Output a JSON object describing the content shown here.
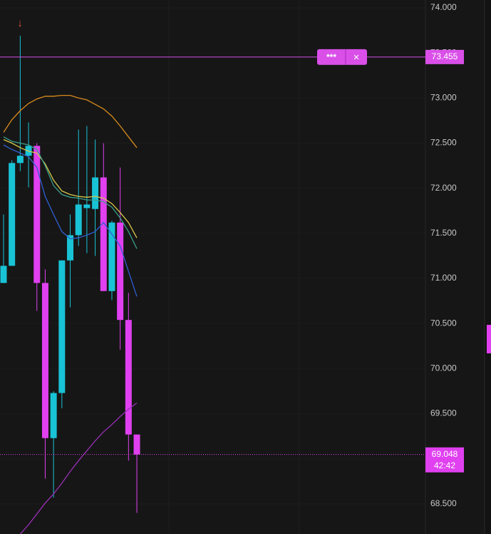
{
  "chart_data": {
    "type": "candlestick",
    "ylim": [
      68.167,
      74.087
    ],
    "yticks": [
      {
        "value": 74,
        "label": "74.000"
      },
      {
        "value": 73.5,
        "label": "73.500"
      },
      {
        "value": 73,
        "label": "73.000"
      },
      {
        "value": 72.5,
        "label": "72.500"
      },
      {
        "value": 72,
        "label": "72.000"
      },
      {
        "value": 71.5,
        "label": "71.500"
      },
      {
        "value": 71,
        "label": "71.000"
      },
      {
        "value": 70.5,
        "label": "70.500"
      },
      {
        "value": 70,
        "label": "70.000"
      },
      {
        "value": 69.5,
        "label": "69.500"
      },
      {
        "value": 69,
        "label": "69.000"
      },
      {
        "value": 68.5,
        "label": "68.500"
      }
    ],
    "grid": true,
    "up_color": "#19c3d6",
    "down_color": "#e040f0",
    "open": [
      70.95,
      71.14,
      72.28,
      72.36,
      72.47,
      70.95,
      69.23,
      69.73,
      71.2,
      71.48,
      71.78,
      71.77,
      72.12,
      70.86,
      71.62,
      70.54,
      69.27
    ],
    "high": [
      71.71,
      72.31,
      73.69,
      72.73,
      72.5,
      71.1,
      69.75,
      71.2,
      71.71,
      72.65,
      72.69,
      72.54,
      72.5,
      71.64,
      72.23,
      70.84,
      69.27
    ],
    "low": [
      70.95,
      71.14,
      72.19,
      72.01,
      70.64,
      68.78,
      68.57,
      69.56,
      70.68,
      71.36,
      71.28,
      71.25,
      70.86,
      70.76,
      70.21,
      68.98,
      68.4
    ],
    "close": [
      71.14,
      72.28,
      72.36,
      72.47,
      70.95,
      69.23,
      69.73,
      71.2,
      71.48,
      71.82,
      71.82,
      72.12,
      70.86,
      71.62,
      70.54,
      69.27,
      69.048
    ],
    "series": [
      {
        "color": "#d98a1c",
        "values": [
          72.62,
          72.76,
          72.86,
          72.94,
          72.99,
          73.02,
          73.02,
          73.03,
          73.03,
          73.0,
          72.98,
          72.93,
          72.88,
          72.8,
          72.69,
          72.57,
          72.45
        ]
      },
      {
        "color": "#d8c84a",
        "values": [
          72.54,
          72.5,
          72.45,
          72.41,
          72.39,
          72.27,
          72.09,
          71.97,
          71.93,
          71.91,
          71.9,
          71.91,
          71.89,
          71.83,
          71.73,
          71.62,
          71.45
        ]
      },
      {
        "color": "#3aa08a",
        "values": [
          72.57,
          72.52,
          72.5,
          72.48,
          72.43,
          72.25,
          72.03,
          71.93,
          71.9,
          71.89,
          71.87,
          71.87,
          71.85,
          71.79,
          71.67,
          71.52,
          71.33
        ]
      },
      {
        "color": "#2f5fd0",
        "values": [
          72.48,
          72.43,
          72.39,
          72.35,
          72.23,
          71.91,
          71.71,
          71.52,
          71.44,
          71.45,
          71.48,
          71.52,
          71.62,
          71.49,
          71.36,
          71.08,
          70.8
        ]
      },
      {
        "color": "#9a2fb8",
        "values": [
          null,
          null,
          68.167,
          68.27,
          68.39,
          68.51,
          68.61,
          68.73,
          68.86,
          68.98,
          69.09,
          69.2,
          69.3,
          69.38,
          69.47,
          69.55,
          69.62
        ]
      }
    ],
    "alert_line": {
      "price": 73.455,
      "color": "#d94fe8",
      "buttons": [
        "***",
        "×"
      ]
    },
    "last_price": {
      "price": 69.048,
      "countdown": "42:42"
    },
    "annotation": "↓"
  }
}
